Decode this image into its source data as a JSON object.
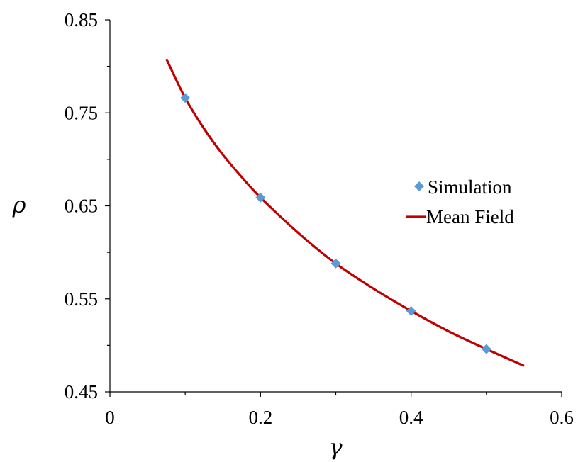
{
  "chart_data": {
    "type": "scatter",
    "title": "",
    "xlabel": "γ",
    "ylabel": "ρ",
    "xlim": [
      0,
      0.6
    ],
    "ylim": [
      0.45,
      0.85
    ],
    "x_ticks": [
      "0",
      "0.2",
      "0.4",
      "0.6"
    ],
    "y_ticks": [
      "0.45",
      "0.55",
      "0.65",
      "0.75",
      "0.85"
    ],
    "grid": false,
    "legend_position": "right",
    "series": [
      {
        "name": "Simulation",
        "kind": "marker",
        "marker": "diamond",
        "color": "#5B9BD5",
        "points": [
          {
            "x": 0.1,
            "y": 0.766
          },
          {
            "x": 0.2,
            "y": 0.659
          },
          {
            "x": 0.3,
            "y": 0.588
          },
          {
            "x": 0.4,
            "y": 0.537
          },
          {
            "x": 0.5,
            "y": 0.496
          }
        ]
      },
      {
        "name": "Mean Field",
        "kind": "line",
        "color": "#C00000",
        "points": [
          {
            "x": 0.075,
            "y": 0.808
          },
          {
            "x": 0.1,
            "y": 0.766
          },
          {
            "x": 0.125,
            "y": 0.733
          },
          {
            "x": 0.15,
            "y": 0.705
          },
          {
            "x": 0.175,
            "y": 0.681
          },
          {
            "x": 0.2,
            "y": 0.659
          },
          {
            "x": 0.25,
            "y": 0.621
          },
          {
            "x": 0.3,
            "y": 0.588
          },
          {
            "x": 0.35,
            "y": 0.561
          },
          {
            "x": 0.4,
            "y": 0.537
          },
          {
            "x": 0.45,
            "y": 0.515
          },
          {
            "x": 0.5,
            "y": 0.496
          },
          {
            "x": 0.55,
            "y": 0.478
          }
        ]
      }
    ]
  }
}
